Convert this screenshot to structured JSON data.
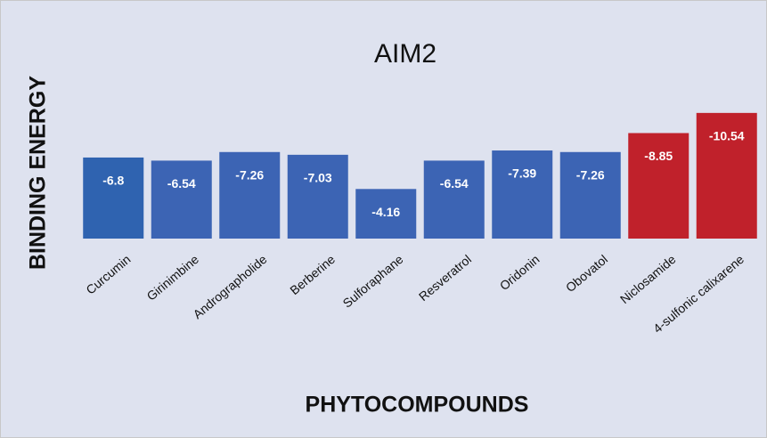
{
  "chart_data": {
    "type": "bar",
    "title": "AIM2",
    "x_label": "PHYTOCOMPOUNDS",
    "y_label": "BINDING ENERGY",
    "categories": [
      "Curcumin",
      "Girinimbine",
      "Andrographolide",
      "Berberine",
      "Sulforaphane",
      "Resveratrol",
      "Oridonin",
      "Obovatol",
      "Niclosamide",
      "4-sulfonic calixarene"
    ],
    "values": [
      -6.8,
      -6.54,
      -7.26,
      -7.03,
      -4.16,
      -6.54,
      -7.39,
      -7.26,
      -8.85,
      -10.54
    ],
    "colors": [
      "#2f63b0",
      "#3c64b4",
      "#3c64b4",
      "#3c64b4",
      "#3c64b4",
      "#3c64b4",
      "#3c64b4",
      "#3c64b4",
      "#c0212b",
      "#c0212b"
    ],
    "ylim": [
      0,
      -11.5
    ]
  }
}
